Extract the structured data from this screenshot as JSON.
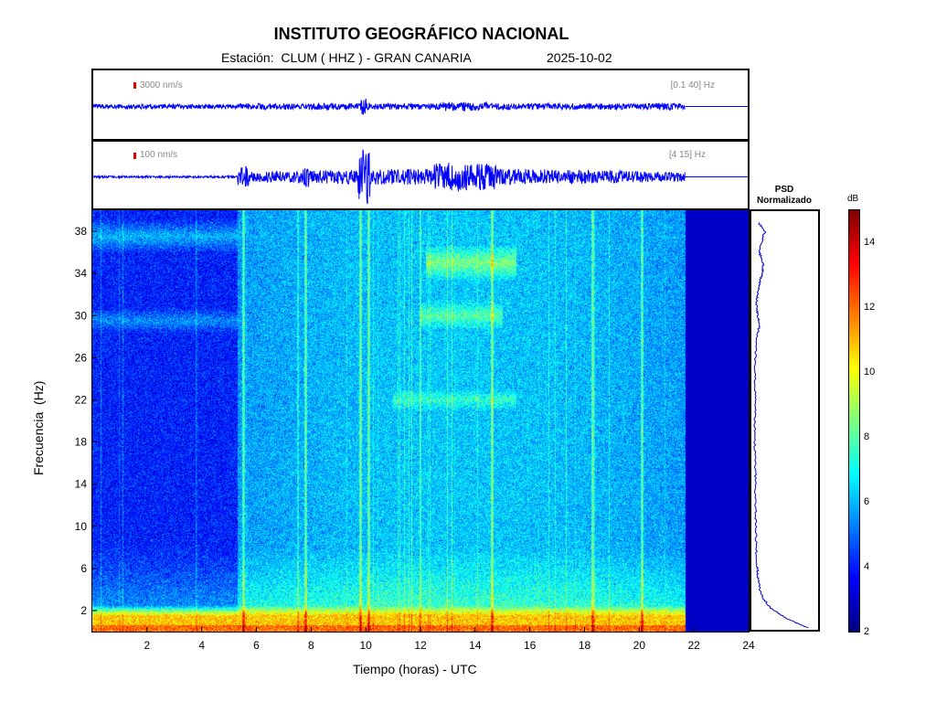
{
  "chart_data": {
    "type": "heatmap",
    "title": "INSTITUTO GEOGRÁFICO NACIONAL",
    "station_label": "Estación:  CLUM ( HHZ ) - GRAN CANARIA",
    "date": "2025-10-02",
    "xlabel": "Tiempo (horas) - UTC",
    "ylabel": "Frecuencia  (Hz)",
    "xlim": [
      0,
      24
    ],
    "ylim": [
      0,
      40
    ],
    "x_ticks": [
      2,
      4,
      6,
      8,
      10,
      12,
      14,
      16,
      18,
      20,
      22,
      24
    ],
    "y_ticks": [
      2,
      6,
      10,
      14,
      18,
      22,
      26,
      30,
      34,
      38
    ],
    "data_end_hour": 21.7,
    "colorbar": {
      "label": "dB",
      "range": [
        2,
        15
      ],
      "ticks": [
        2,
        4,
        6,
        8,
        10,
        12,
        14
      ],
      "colormap": "jet"
    },
    "traces": [
      {
        "scale_label": "3000 nm/s",
        "band_label": "[0.1 40] Hz",
        "color": "#0000ff"
      },
      {
        "scale_label": "100 nm/s",
        "band_label": "[4 15] Hz",
        "color": "#0000ff"
      }
    ],
    "psd": {
      "title_line1": "PSD",
      "title_line2": "Normalizado",
      "frequency": [
        0.2,
        1,
        2,
        3,
        4,
        5,
        6,
        8,
        10,
        12,
        14,
        16,
        18,
        20,
        22,
        24,
        26,
        28,
        29,
        30,
        31,
        32,
        33,
        34,
        35,
        36,
        37,
        38,
        39
      ],
      "normalized_power": [
        0.85,
        0.55,
        0.3,
        0.18,
        0.12,
        0.1,
        0.09,
        0.07,
        0.07,
        0.06,
        0.06,
        0.06,
        0.05,
        0.05,
        0.06,
        0.05,
        0.06,
        0.08,
        0.12,
        0.1,
        0.08,
        0.09,
        0.12,
        0.16,
        0.18,
        0.12,
        0.15,
        0.2,
        0.1
      ]
    },
    "spectrogram_features": {
      "background_db": 4,
      "low_freq_band": {
        "freq_max": 1.5,
        "db": 12
      },
      "active_hours": [
        5.3,
        21.7
      ],
      "bright_bands": [
        {
          "freq": 35,
          "hours": [
            12.2,
            15.5
          ],
          "db": 8.5
        },
        {
          "freq": 30,
          "hours": [
            12.0,
            15.0
          ],
          "db": 8
        },
        {
          "freq": 22,
          "hours": [
            11.0,
            15.5
          ],
          "db": 7.5
        },
        {
          "freq": 37.5,
          "hours": [
            0,
            21.7
          ],
          "db": 6
        },
        {
          "freq": 29.5,
          "hours": [
            0,
            12
          ],
          "db": 5.5
        }
      ],
      "vertical_lines_hours": [
        5.5,
        7.8,
        9.8,
        10.1,
        14.6,
        18.3,
        20.1
      ]
    }
  }
}
